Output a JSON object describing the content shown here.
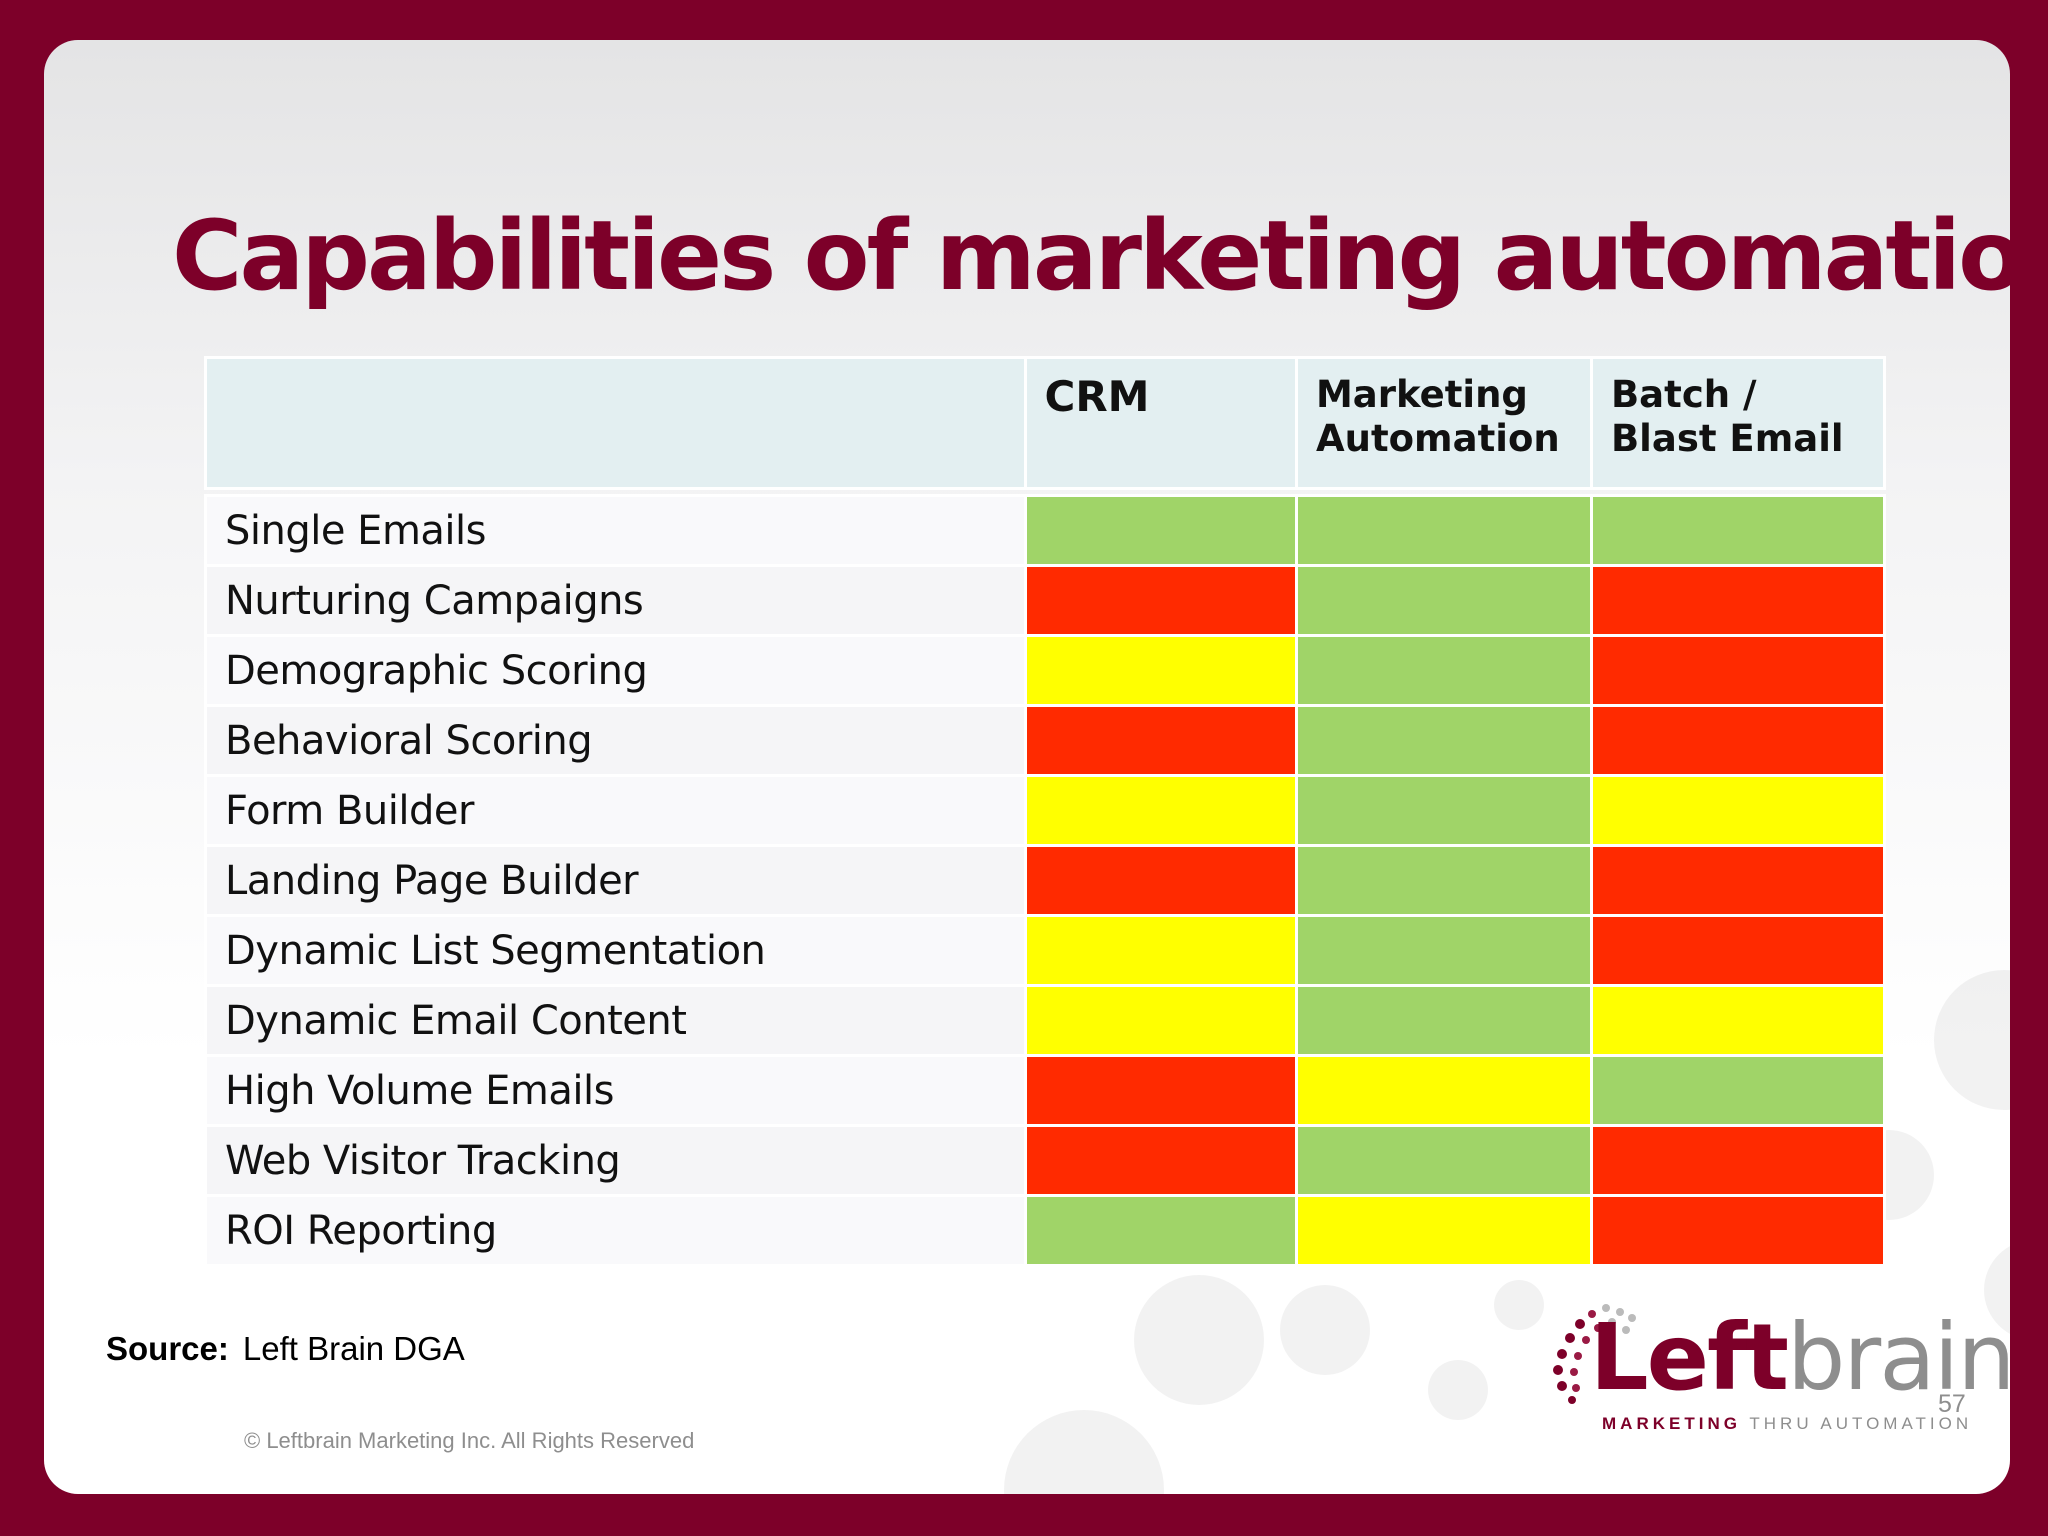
{
  "slide": {
    "title": "Capabilities of marketing automation",
    "page_number": "57",
    "source_label": "Source:",
    "source_value": "Left Brain DGA",
    "copyright": "© Leftbrain Marketing Inc. All Rights Reserved"
  },
  "logo": {
    "word_left": "Left",
    "word_right": "brain",
    "tagline_left": "MARKETING",
    "tagline_right": "THRU AUTOMATION",
    "brand_color": "#7d0029",
    "grey_color": "#8e8e8e"
  },
  "colors": {
    "background": "#7d0029",
    "title": "#7d0029",
    "header_fill": "#e3eff1",
    "green": "#a0d468",
    "yellow": "#ffff00",
    "red": "#ff2a00"
  },
  "table": {
    "headers": [
      "CRM",
      "Marketing Automation",
      "Batch / Blast Email"
    ],
    "rows": [
      {
        "label": "Single Emails",
        "ratings": [
          "green",
          "green",
          "green"
        ]
      },
      {
        "label": "Nurturing Campaigns",
        "ratings": [
          "red",
          "green",
          "red"
        ]
      },
      {
        "label": "Demographic Scoring",
        "ratings": [
          "yellow",
          "green",
          "red"
        ]
      },
      {
        "label": "Behavioral Scoring",
        "ratings": [
          "red",
          "green",
          "red"
        ]
      },
      {
        "label": "Form Builder",
        "ratings": [
          "yellow",
          "green",
          "yellow"
        ]
      },
      {
        "label": "Landing Page Builder",
        "ratings": [
          "red",
          "green",
          "red"
        ]
      },
      {
        "label": "Dynamic List Segmentation",
        "ratings": [
          "yellow",
          "green",
          "red"
        ]
      },
      {
        "label": "Dynamic Email Content",
        "ratings": [
          "yellow",
          "green",
          "yellow"
        ]
      },
      {
        "label": "High Volume Emails",
        "ratings": [
          "red",
          "yellow",
          "green"
        ]
      },
      {
        "label": "Web Visitor Tracking",
        "ratings": [
          "red",
          "green",
          "red"
        ]
      },
      {
        "label": "ROI Reporting",
        "ratings": [
          "green",
          "yellow",
          "red"
        ]
      }
    ]
  }
}
